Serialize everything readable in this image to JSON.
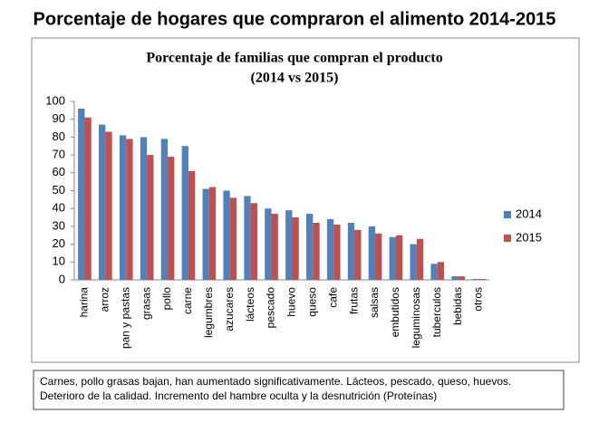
{
  "page_title": "Porcentaje de hogares que compraron el alimento 2014-2015",
  "note": [
    "Carnes, pollo grasas bajan, han aumentado significativamente. Lácteos, pescado, queso,  huevos.",
    "Deterioro de la calidad. Incremento del hambre oculta y  la desnutrición (Proteínas)"
  ],
  "chart_data": {
    "type": "bar",
    "title": [
      "Porcentaje de familias que compran el producto",
      "(2014 vs 2015)"
    ],
    "categories": [
      "harina",
      "arroz",
      "pan y pastas",
      "grasas",
      "pollo",
      "carne",
      "legumbres",
      "azucares",
      "lácteos",
      "pescado",
      "huevo",
      "queso",
      "cafe",
      "frutas",
      "salsas",
      "embutidos",
      "leguminosas",
      "tuberculos",
      "bebidas",
      "otros"
    ],
    "series": [
      {
        "name": "2014",
        "color": "#4f81bd",
        "values": [
          96,
          87,
          81,
          80,
          79,
          75,
          51,
          50,
          47,
          40,
          39,
          37,
          34,
          32,
          30,
          24,
          20,
          9,
          2,
          0.5
        ]
      },
      {
        "name": "2015",
        "color": "#c0504d",
        "values": [
          91,
          83,
          79,
          70,
          69,
          61,
          52,
          46,
          43,
          37,
          35,
          32,
          31,
          28,
          26,
          25,
          23,
          10,
          2,
          0.5
        ]
      }
    ],
    "ylim": [
      0,
      100
    ],
    "yticks": [
      0,
      10,
      20,
      30,
      40,
      50,
      60,
      70,
      80,
      90,
      100
    ],
    "grid": false,
    "legend": "right"
  }
}
